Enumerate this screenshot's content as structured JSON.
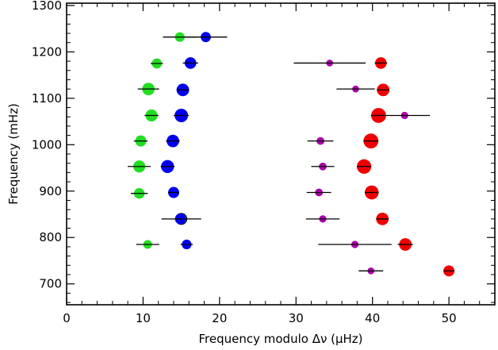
{
  "chart_data": {
    "type": "scatter",
    "title": "",
    "xlabel": "Frequency modulo Δν (μHz)",
    "ylabel": "Frequency (mHz)",
    "xlim": [
      0,
      56
    ],
    "ylim": [
      655,
      1305
    ],
    "xticks": [
      0,
      10,
      20,
      30,
      40,
      50
    ],
    "yticks": [
      700,
      800,
      900,
      1000,
      1100,
      1200,
      1300
    ],
    "xtick_labels": [
      "0",
      "10",
      "20",
      "30",
      "40",
      "50"
    ],
    "ytick_labels": [
      "700",
      "800",
      "900",
      "1000",
      "1100",
      "1200",
      "1300"
    ],
    "grid": false,
    "legend": false,
    "series": [
      {
        "color": "#22dd22",
        "points": [
          {
            "x": 10.6,
            "y": 785,
            "err": 1.5,
            "size": 0.55
          },
          {
            "x": 15.0,
            "y": 840,
            "err": 2.6,
            "size": 0.8,
            "outline": true
          },
          {
            "x": 9.5,
            "y": 895,
            "err": 1.1,
            "size": 0.75
          },
          {
            "x": 9.5,
            "y": 953,
            "err": 1.5,
            "size": 0.9
          },
          {
            "x": 9.7,
            "y": 1008,
            "err": 0.9,
            "size": 0.8
          },
          {
            "x": 11.1,
            "y": 1063,
            "err": 0.9,
            "size": 0.9
          },
          {
            "x": 10.7,
            "y": 1120,
            "err": 1.4,
            "size": 0.95
          },
          {
            "x": 11.8,
            "y": 1175,
            "err": 0.8,
            "size": 0.7
          },
          {
            "x": 14.8,
            "y": 1232,
            "err": 2.2,
            "size": 0.65
          }
        ]
      },
      {
        "color": "#0000ee",
        "points": [
          {
            "x": 15.7,
            "y": 785,
            "err": 0.8,
            "size": 0.65
          },
          {
            "x": 14.9,
            "y": 840,
            "err": 0.6,
            "size": 0.8
          },
          {
            "x": 14.0,
            "y": 897,
            "err": 0.7,
            "size": 0.8
          },
          {
            "x": 13.2,
            "y": 953,
            "err": 0.9,
            "size": 1.0
          },
          {
            "x": 13.9,
            "y": 1008,
            "err": 0.9,
            "size": 0.95
          },
          {
            "x": 15.0,
            "y": 1063,
            "err": 1.0,
            "size": 1.05
          },
          {
            "x": 15.2,
            "y": 1118,
            "err": 0.7,
            "size": 0.95
          },
          {
            "x": 16.2,
            "y": 1176,
            "err": 1.0,
            "size": 0.85
          },
          {
            "x": 18.2,
            "y": 1232,
            "err": 2.8,
            "size": 0.7
          }
        ]
      },
      {
        "color": "#aa00aa",
        "points": [
          {
            "x": 37.7,
            "y": 785,
            "err": 4.8,
            "size": 0.4
          },
          {
            "x": 33.5,
            "y": 840,
            "err": 2.2,
            "size": 0.4
          },
          {
            "x": 33.0,
            "y": 897,
            "err": 1.6,
            "size": 0.45
          },
          {
            "x": 33.5,
            "y": 953,
            "err": 1.5,
            "size": 0.45
          },
          {
            "x": 33.2,
            "y": 1008,
            "err": 1.7,
            "size": 0.45
          },
          {
            "x": 44.2,
            "y": 1063,
            "err": 3.3,
            "size": 0.4
          },
          {
            "x": 37.8,
            "y": 1120,
            "err": 2.5,
            "size": 0.35
          },
          {
            "x": 34.4,
            "y": 1176,
            "err": 4.7,
            "size": 0.35
          },
          {
            "x": 39.8,
            "y": 728,
            "err": 1.6,
            "size": 0.35
          }
        ]
      },
      {
        "color": "#ee0000",
        "points": [
          {
            "x": 50.0,
            "y": 728,
            "err": 0.6,
            "size": 0.8
          },
          {
            "x": 44.3,
            "y": 785,
            "err": 1.0,
            "size": 0.95
          },
          {
            "x": 41.3,
            "y": 840,
            "err": 0.8,
            "size": 0.95
          },
          {
            "x": 39.9,
            "y": 897,
            "err": 0.9,
            "size": 1.1
          },
          {
            "x": 38.9,
            "y": 953,
            "err": 0.9,
            "size": 1.15
          },
          {
            "x": 39.8,
            "y": 1008,
            "err": 0.9,
            "size": 1.2
          },
          {
            "x": 40.8,
            "y": 1063,
            "err": 1.0,
            "size": 1.2
          },
          {
            "x": 41.4,
            "y": 1118,
            "err": 0.8,
            "size": 0.95
          },
          {
            "x": 41.1,
            "y": 1176,
            "err": 0.8,
            "size": 0.85
          }
        ]
      }
    ]
  }
}
